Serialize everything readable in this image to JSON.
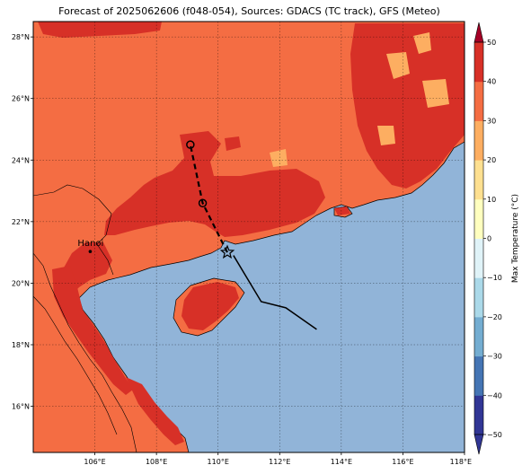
{
  "title": "Forecast of 2025062606 (f048-054), Sources: GDACS (TC track), GFS (Meteo)",
  "map": {
    "lon_range": [
      104.0,
      118.0
    ],
    "lat_range": [
      14.5,
      28.5
    ],
    "lat_ticks": [
      "16°N",
      "18°N",
      "20°N",
      "22°N",
      "24°N",
      "26°N",
      "28°N"
    ],
    "lon_ticks": [
      "106°E",
      "108°E",
      "110°E",
      "112°E",
      "114°E",
      "116°E",
      "118°E"
    ],
    "gridlines": true
  },
  "colorbar": {
    "label": "Max Temperature (°C)",
    "ticks": [
      "−50",
      "−40",
      "−30",
      "−20",
      "−10",
      "0",
      "10",
      "20",
      "30",
      "40",
      "50"
    ],
    "colors": [
      "#313695",
      "#4575b4",
      "#74add1",
      "#abd9e9",
      "#e0f3f8",
      "#ffffbf",
      "#fee090",
      "#fdae61",
      "#f46d43",
      "#d73027",
      "#a50026"
    ],
    "range": [
      -50,
      50
    ],
    "extend": "both"
  },
  "colors": {
    "sea": "#91b4d8",
    "land_30_40": "#f46d43",
    "land_40_50": "#d73027",
    "track_forecast": "#000000"
  },
  "cities": [
    {
      "name": "Hanoi",
      "lon": 105.85,
      "lat": 21.03
    }
  ],
  "track": {
    "observed": [
      [
        113.2,
        18.5
      ],
      [
        112.2,
        19.2
      ],
      [
        111.4,
        19.4
      ],
      [
        110.5,
        20.9
      ]
    ],
    "storm_position": [
      110.3,
      21.0
    ],
    "forecast": [
      [
        110.3,
        21.0
      ],
      [
        109.5,
        22.6
      ],
      [
        109.1,
        24.5
      ]
    ],
    "forecast_points": [
      [
        109.5,
        22.6
      ],
      [
        109.1,
        24.5
      ]
    ]
  }
}
